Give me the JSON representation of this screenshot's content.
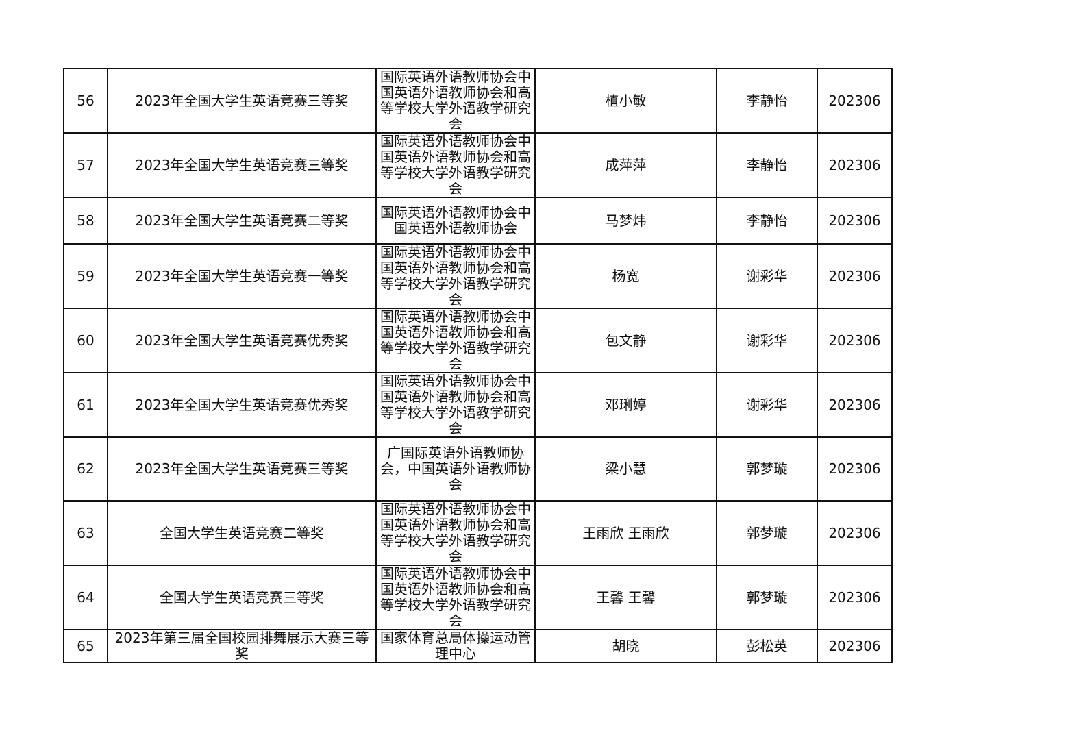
{
  "rows": [
    {
      "no": "56",
      "award": "2023年全国大学生英语竞赛三等奖",
      "org": "国际英语外语教师协会中国英语外语教师协会和高等学校大学外语教学研究会",
      "student": "植小敏",
      "teacher": "李静怡",
      "date": "202306"
    },
    {
      "no": "57",
      "award": "2023年全国大学生英语竞赛三等奖",
      "org": "国际英语外语教师协会中国英语外语教师协会和高等学校大学外语教学研究会",
      "student": "成萍萍",
      "teacher": "李静怡",
      "date": "202306"
    },
    {
      "no": "58",
      "award": "2023年全国大学生英语竞赛二等奖",
      "org": "国际英语外语教师协会中国英语外语教师协会",
      "student": "马梦炜",
      "teacher": "李静怡",
      "date": "202306"
    },
    {
      "no": "59",
      "award": "2023年全国大学生英语竞赛一等奖",
      "org": "国际英语外语教师协会中国英语外语教师协会和高等学校大学外语教学研究会",
      "student": "杨宽",
      "teacher": "谢彩华",
      "date": "202306"
    },
    {
      "no": "60",
      "award": "2023年全国大学生英语竞赛优秀奖",
      "org": "国际英语外语教师协会中国英语外语教师协会和高等学校大学外语教学研究会",
      "student": "包文静",
      "teacher": "谢彩华",
      "date": "202306"
    },
    {
      "no": "61",
      "award": "2023年全国大学生英语竞赛优秀奖",
      "org": "国际英语外语教师协会中国英语外语教师协会和高等学校大学外语教学研究会",
      "student": "邓琍婷",
      "teacher": "谢彩华",
      "date": "202306"
    },
    {
      "no": "62",
      "award": "2023年全国大学生英语竞赛三等奖",
      "org": "广国际英语外语教师协会，中国英语外语教师协会",
      "student": "梁小慧",
      "teacher": "郭梦璇",
      "date": "202306"
    },
    {
      "no": "63",
      "award": "全国大学生英语竞赛二等奖",
      "org": "国际英语外语教师协会中国英语外语教师协会和高等学校大学外语教学研究会",
      "student": "王雨欣 王雨欣",
      "teacher": "郭梦璇",
      "date": "202306"
    },
    {
      "no": "64",
      "award": "全国大学生英语竞赛三等奖",
      "org": "国际英语外语教师协会中国英语外语教师协会和高等学校大学外语教学研究会",
      "student": "王馨 王馨",
      "teacher": "郭梦璇",
      "date": "202306"
    },
    {
      "no": "65",
      "award": "2023年第三届全国校园排舞展示大赛三等奖",
      "org": "国家体育总局体操运动管理中心",
      "student": "胡晓",
      "teacher": "彭松英",
      "date": "202306"
    }
  ]
}
